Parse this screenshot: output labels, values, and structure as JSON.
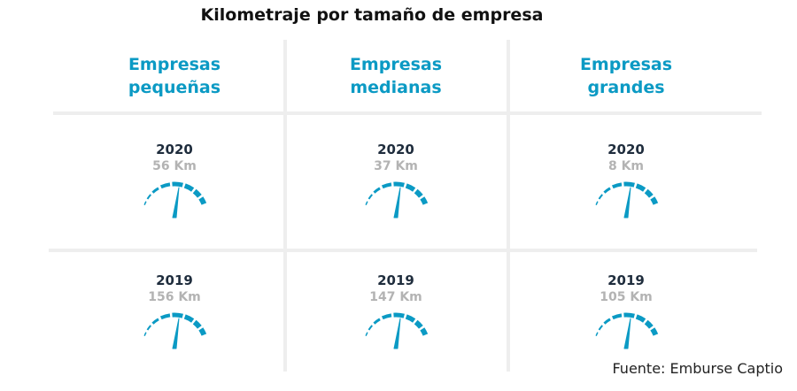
{
  "title": "Kilometraje por tamaño de empresa",
  "columns": [
    {
      "header": "Empresas pequeñas",
      "rows": [
        {
          "year": "2020",
          "value": "56 Km"
        },
        {
          "year": "2019",
          "value": "156 Km"
        }
      ]
    },
    {
      "header": "Empresas medianas",
      "rows": [
        {
          "year": "2020",
          "value": "37 Km"
        },
        {
          "year": "2019",
          "value": "147 Km"
        }
      ]
    },
    {
      "header": "Empresas grandes",
      "rows": [
        {
          "year": "2020",
          "value": "8 Km"
        },
        {
          "year": "2019",
          "value": "105 Km"
        }
      ]
    }
  ],
  "source": "Fuente: Emburse Captio"
}
